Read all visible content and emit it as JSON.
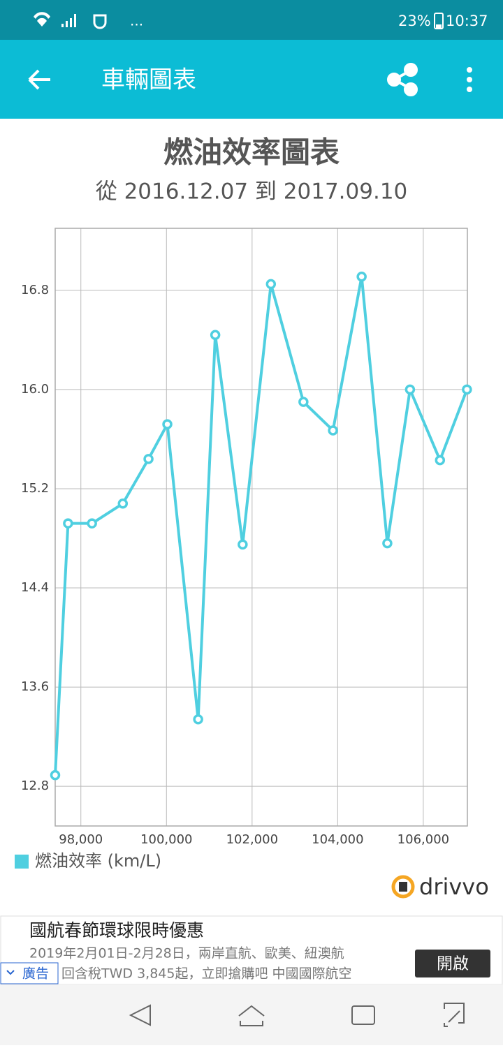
{
  "status_bar": {
    "battery": "23%",
    "time": "10:37",
    "more": "..."
  },
  "app_bar": {
    "title": "車輛圖表"
  },
  "chart_data": {
    "type": "line",
    "title": "燃油效率圖表",
    "subtitle": "從 2016.12.07 到 2017.09.10",
    "x": [
      97400,
      97700,
      98260,
      98980,
      99580,
      100020,
      100740,
      101140,
      101780,
      102440,
      103200,
      103890,
      104560,
      105160,
      105690,
      106390,
      107020
    ],
    "series": [
      {
        "name": "燃油效率 (km/L)",
        "color": "#4fcfe0",
        "values": [
          12.89,
          14.92,
          14.92,
          15.08,
          15.44,
          15.72,
          13.34,
          16.44,
          14.75,
          16.85,
          15.9,
          15.67,
          16.91,
          14.76,
          16.0,
          15.43,
          16.0
        ]
      }
    ],
    "xlim": [
      97400,
      107030
    ],
    "ylim": [
      12.48,
      17.3
    ],
    "xticks": [
      {
        "value": 98000,
        "label": "98,000"
      },
      {
        "value": 100000,
        "label": "100,000"
      },
      {
        "value": 102000,
        "label": "102,000"
      },
      {
        "value": 104000,
        "label": "104,000"
      },
      {
        "value": 106000,
        "label": "106,000"
      }
    ],
    "yticks": [
      12.8,
      13.6,
      14.4,
      15.2,
      {
        "value": 16,
        "label": "16.0"
      },
      16.8
    ],
    "grid": true,
    "legend": "bottom-left"
  },
  "brand": "drivvo",
  "ad": {
    "title": "國航春節環球限時優惠",
    "line1": "2019年2月01日-2月28日，兩岸直航、歐美、紐澳航",
    "line2": "回含稅TWD 3,845起，立即搶購吧 中國國際航空",
    "badge": "廣告",
    "button": "開啟"
  }
}
